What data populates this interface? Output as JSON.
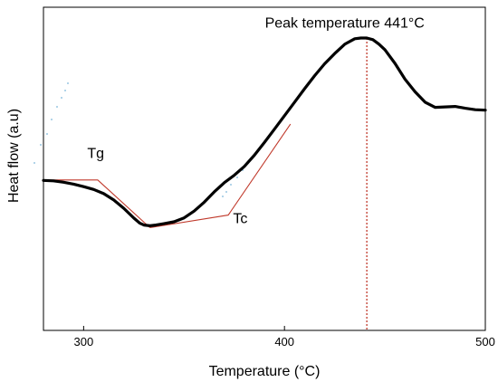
{
  "chart_data": {
    "type": "line",
    "title": "",
    "xlabel": "Temperature (°C)",
    "ylabel": "Heat flow (a.u)",
    "xlim": [
      280,
      500
    ],
    "ylim": [
      0,
      100
    ],
    "xticks": [
      300,
      400,
      500
    ],
    "grid": false,
    "legend": "none",
    "y_tick_labels": false,
    "series": [
      {
        "color": "#000000",
        "x": [
          280,
          285,
          290,
          295,
          300,
          305,
          310,
          315,
          320,
          325,
          328,
          330,
          333,
          336,
          340,
          345,
          350,
          355,
          360,
          365,
          370,
          375,
          380,
          385,
          390,
          395,
          400,
          405,
          410,
          415,
          420,
          425,
          430,
          435,
          438,
          441,
          444,
          447,
          450,
          455,
          460,
          465,
          470,
          475,
          480,
          485,
          490,
          495,
          500
        ],
        "values": [
          38.8,
          38.6,
          38.0,
          37.2,
          36.1,
          34.9,
          33.1,
          30.4,
          26.8,
          22.6,
          20.4,
          19.6,
          19.3,
          19.6,
          20.2,
          21.0,
          22.7,
          25.6,
          29.4,
          33.8,
          37.8,
          41.0,
          44.8,
          49.6,
          55.1,
          60.8,
          66.6,
          72.4,
          78.2,
          83.8,
          88.9,
          93.3,
          97.3,
          99.7,
          100.0,
          100.0,
          99.3,
          97.4,
          95.0,
          89.1,
          82.3,
          76.9,
          72.4,
          70.2,
          70.4,
          70.6,
          69.8,
          69.2,
          69.0
        ]
      }
    ],
    "tangent_lines": [
      {
        "color": "#c0392b",
        "x": [
          280,
          307,
          333
        ],
        "values": [
          39.0,
          39.0,
          18.5
        ]
      },
      {
        "color": "#c0392b",
        "x": [
          333,
          372,
          403
        ],
        "values": [
          18.5,
          23.9,
          63.0
        ]
      }
    ],
    "reference_lines": [
      {
        "color": "#c0392b",
        "style": "dashed",
        "x": 441
      }
    ],
    "annotations": [
      {
        "text": "Tg",
        "x": 306,
        "y": 48.5
      },
      {
        "text": "Tc",
        "x": 378,
        "y": 20.5
      },
      {
        "text": "Peak temperature 441°C",
        "x": 430,
        "y": 104.5
      }
    ],
    "artifact_dots_color": "#7ab6d9"
  }
}
